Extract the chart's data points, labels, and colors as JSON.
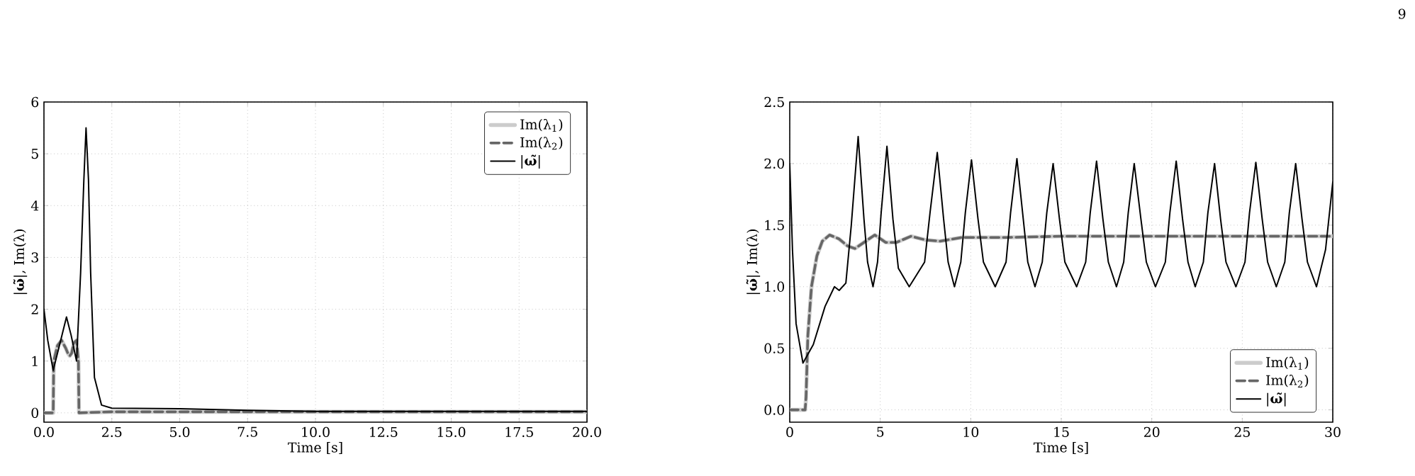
{
  "chart_data": [
    {
      "type": "line",
      "xlabel": "Time [s]",
      "ylabel": "|**ω̃**|, Im(λ)",
      "xlim": [
        0,
        20
      ],
      "ylim": [
        -0.18,
        6
      ],
      "xticks": [
        {
          "value": 0,
          "label": "0.0"
        },
        2.5,
        {
          "value": 5,
          "label": "5.0"
        },
        7.5,
        {
          "value": 10,
          "label": "10.0"
        },
        12.5,
        {
          "value": 15,
          "label": "15.0"
        },
        17.5,
        {
          "value": 20,
          "label": "20.0"
        }
      ],
      "yticks": [
        0,
        1,
        2,
        3,
        4,
        5,
        6
      ],
      "grid": true,
      "legend": "top right",
      "series": [
        {
          "name": "Im(λ$_{1}$)",
          "color": "#cccccc",
          "line_style": "solid",
          "x": [
            0,
            0.34,
            0.36,
            0.5,
            0.65,
            0.8,
            0.88,
            0.95,
            1.02,
            1.1,
            1.2,
            1.27,
            1.29,
            2.5,
            20
          ],
          "values": [
            0,
            0,
            1.0,
            1.3,
            1.4,
            1.25,
            1.15,
            1.1,
            1.15,
            1.35,
            1.4,
            1.0,
            0,
            0.02,
            0.02
          ]
        },
        {
          "name": "Im(λ$_{2}$)",
          "color": "#666666",
          "line_style": "dashed",
          "x": [
            0,
            0.34,
            0.36,
            0.5,
            0.65,
            0.8,
            0.88,
            0.95,
            1.02,
            1.1,
            1.2,
            1.27,
            1.29,
            2.5,
            20
          ],
          "values": [
            0,
            0,
            1.0,
            1.3,
            1.4,
            1.25,
            1.15,
            1.1,
            1.15,
            1.35,
            1.4,
            1.0,
            0,
            0.02,
            0.02
          ]
        },
        {
          "name": "|**ω̃**|",
          "color": "#000000",
          "line_style": "solid",
          "x": [
            0,
            0.14,
            0.34,
            0.57,
            0.83,
            1.0,
            1.2,
            1.35,
            1.47,
            1.55,
            1.64,
            1.72,
            1.86,
            2.12,
            2.5,
            5.0,
            7.5,
            10,
            20
          ],
          "values": [
            2.0,
            1.4,
            0.82,
            1.3,
            1.85,
            1.5,
            1.0,
            2.7,
            4.5,
            5.5,
            4.5,
            2.7,
            0.68,
            0.15,
            0.09,
            0.08,
            0.05,
            0.03,
            0.03
          ]
        }
      ]
    },
    {
      "type": "line",
      "xlabel": "Time [s]",
      "ylabel": "|**ω̃**|, Im(λ)",
      "xlim": [
        0,
        30
      ],
      "ylim": [
        -0.1,
        2.5
      ],
      "xticks": [
        0,
        5,
        10,
        15,
        20,
        25,
        30
      ],
      "yticks": [
        {
          "value": 0,
          "label": "0.0"
        },
        0.5,
        {
          "value": 1,
          "label": "1.0"
        },
        1.5,
        {
          "value": 2,
          "label": "2.0"
        },
        2.5
      ],
      "grid": true,
      "legend": "bottom right",
      "annotations": [
        "9"
      ],
      "series": [
        {
          "name": "Im(λ$_{1}$)",
          "color": "#cccccc",
          "line_style": "solid",
          "x": [
            0,
            0.85,
            0.9,
            1.0,
            1.2,
            1.5,
            1.8,
            2.2,
            2.7,
            3.2,
            3.6,
            4.1,
            4.7,
            5.3,
            5.9,
            6.7,
            7.5,
            8.3,
            9.5,
            12,
            15,
            30
          ],
          "values": [
            0,
            0,
            0.1,
            0.6,
            1.0,
            1.25,
            1.37,
            1.42,
            1.39,
            1.33,
            1.31,
            1.36,
            1.42,
            1.36,
            1.36,
            1.41,
            1.38,
            1.37,
            1.4,
            1.4,
            1.41,
            1.41
          ]
        },
        {
          "name": "Im(λ$_{2}$)",
          "color": "#666666",
          "line_style": "dashed",
          "x": [
            0,
            0.85,
            0.9,
            1.0,
            1.2,
            1.5,
            1.8,
            2.2,
            2.7,
            3.2,
            3.6,
            4.1,
            4.7,
            5.3,
            5.9,
            6.7,
            7.5,
            8.3,
            9.5,
            12,
            15,
            30
          ],
          "values": [
            0,
            0,
            0.1,
            0.6,
            1.0,
            1.25,
            1.37,
            1.42,
            1.39,
            1.33,
            1.31,
            1.36,
            1.42,
            1.36,
            1.36,
            1.41,
            1.38,
            1.37,
            1.4,
            1.4,
            1.41,
            1.41
          ]
        },
        {
          "name": "|**ω̃**|",
          "color": "#000000",
          "line_style": "solid",
          "x": [
            0,
            0.15,
            0.35,
            0.73,
            1.3,
            1.95,
            2.47,
            2.73,
            3.1,
            3.4,
            3.78,
            4.1,
            4.3,
            4.6,
            4.85,
            5.05,
            5.37,
            5.7,
            6.0,
            6.6,
            7.45,
            7.75,
            8.15,
            8.5,
            8.75,
            9.1,
            9.45,
            9.7,
            10.04,
            10.4,
            10.7,
            11.35,
            11.95,
            12.2,
            12.55,
            12.9,
            13.15,
            13.55,
            13.95,
            14.2,
            14.55,
            14.9,
            15.2,
            15.85,
            16.35,
            16.6,
            16.95,
            17.3,
            17.6,
            18.05,
            18.45,
            18.7,
            19.03,
            19.4,
            19.7,
            20.2,
            20.75,
            21.0,
            21.35,
            21.7,
            22.0,
            22.4,
            22.85,
            23.1,
            23.47,
            23.8,
            24.1,
            24.65,
            25.15,
            25.4,
            25.75,
            26.1,
            26.4,
            26.88,
            27.35,
            27.6,
            27.95,
            28.3,
            28.6,
            29.1,
            29.6,
            30
          ],
          "values": [
            2.0,
            1.3,
            0.7,
            0.38,
            0.53,
            0.84,
            1.0,
            0.97,
            1.03,
            1.5,
            2.22,
            1.55,
            1.2,
            1.0,
            1.2,
            1.6,
            2.14,
            1.55,
            1.15,
            1.0,
            1.2,
            1.6,
            2.09,
            1.55,
            1.2,
            1.0,
            1.2,
            1.6,
            2.03,
            1.55,
            1.2,
            1.0,
            1.2,
            1.6,
            2.04,
            1.55,
            1.2,
            1.0,
            1.2,
            1.6,
            2.0,
            1.55,
            1.2,
            1.0,
            1.2,
            1.6,
            2.02,
            1.55,
            1.2,
            1.0,
            1.2,
            1.6,
            2.0,
            1.55,
            1.2,
            1.0,
            1.2,
            1.6,
            2.02,
            1.55,
            1.2,
            1.0,
            1.2,
            1.6,
            2.0,
            1.55,
            1.2,
            1.0,
            1.2,
            1.6,
            2.01,
            1.55,
            1.2,
            1.0,
            1.2,
            1.6,
            2.0,
            1.55,
            1.2,
            1.0,
            1.3,
            1.85
          ]
        }
      ]
    }
  ]
}
